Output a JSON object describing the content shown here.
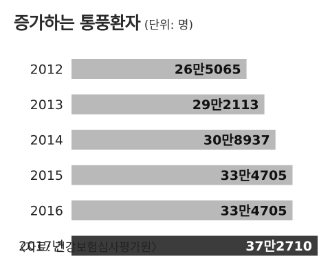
{
  "title": "증가하는 통풍환자",
  "unit_note": "(단위: 명)",
  "source": "〈자료: 건강보험심사평가원〉",
  "chart_data": {
    "type": "bar",
    "orientation": "horizontal",
    "title": "증가하는 통풍환자",
    "categories": [
      "2012",
      "2013",
      "2014",
      "2015",
      "2016",
      "2017년"
    ],
    "values": [
      265065,
      292113,
      308937,
      334705,
      334705,
      372710
    ],
    "data_labels": [
      "26만5065",
      "29만2113",
      "30만8937",
      "33만4705",
      "33만4705",
      "37만2710"
    ],
    "xlim": [
      0,
      372710
    ],
    "grid": false,
    "colors": {
      "bar": "#b9b9b9",
      "highlight_bar": "#3c3c3c",
      "label": "#111111",
      "highlight_label": "#ffffff"
    }
  }
}
